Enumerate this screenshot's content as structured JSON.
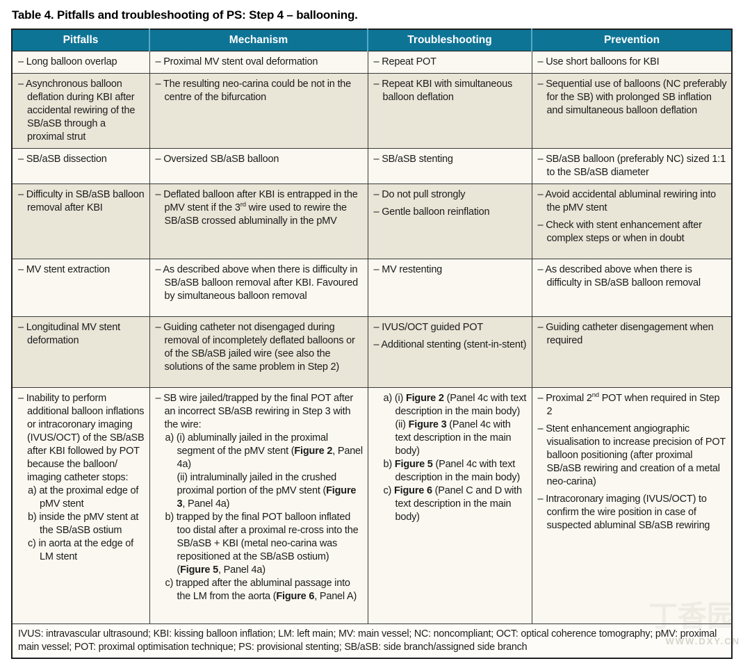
{
  "title": "Table 4. Pitfalls and troubleshooting of PS: Step 4 – ballooning.",
  "header": {
    "columns": [
      "Pitfalls",
      "Mechanism",
      "Troubleshooting",
      "Prevention"
    ]
  },
  "rows": [
    {
      "pitfalls": [
        {
          "k": "it",
          "t": "– Long balloon overlap"
        }
      ],
      "mechanism": [
        {
          "k": "it",
          "t": "– Proximal MV stent oval deformation"
        }
      ],
      "troubleshooting": [
        {
          "k": "it",
          "t": "– Repeat POT"
        }
      ],
      "prevention": [
        {
          "k": "it",
          "t": "– Use short balloons for KBI"
        }
      ]
    },
    {
      "pitfalls": [
        {
          "k": "it",
          "t": "– Asynchronous balloon deflation during KBI after accidental rewiring of the SB/aSB through a proximal strut"
        }
      ],
      "mechanism": [
        {
          "k": "it",
          "t": "– The resulting neo-carina could be not in the centre of the bifurcation"
        }
      ],
      "troubleshooting": [
        {
          "k": "it",
          "t": "– Repeat KBI with simultaneous balloon deflation"
        }
      ],
      "prevention": [
        {
          "k": "it",
          "t": "– Sequential use of balloons (NC preferably for the SB) with prolonged SB inflation and simultaneous balloon deflation"
        }
      ]
    },
    {
      "pitfalls": [
        {
          "k": "it",
          "t": "– SB/aSB dissection"
        }
      ],
      "mechanism": [
        {
          "k": "it",
          "t": "– Oversized SB/aSB balloon"
        }
      ],
      "troubleshooting": [
        {
          "k": "it",
          "t": "– SB/aSB stenting"
        }
      ],
      "prevention": [
        {
          "k": "it",
          "t": "– SB/aSB balloon (preferably NC) sized 1:1 to the SB/aSB diameter"
        }
      ]
    },
    {
      "pitfalls": [
        {
          "k": "it",
          "t": "– Difficulty in SB/aSB balloon removal after KBI"
        }
      ],
      "mechanism": [
        {
          "k": "it",
          "t": "– Deflated balloon after KBI is entrapped in the pMV stent if the 3<sup>rd</sup> wire used to rewire the SB/aSB crossed abluminally in the pMV"
        }
      ],
      "troubleshooting": [
        {
          "k": "it",
          "t": "– Do not pull strongly"
        },
        {
          "k": "it",
          "t": "– Gentle balloon reinflation"
        }
      ],
      "prevention": [
        {
          "k": "it",
          "t": "– Avoid accidental abluminal rewiring into the pMV stent"
        },
        {
          "k": "it",
          "t": "– Check with stent enhancement after complex steps or when in doubt"
        }
      ]
    },
    {
      "pitfalls": [
        {
          "k": "it",
          "t": "– MV stent extraction"
        }
      ],
      "mechanism": [
        {
          "k": "it",
          "t": "– As described above when there is difficulty in SB/aSB balloon removal after KBI. Favoured by simultaneous balloon removal"
        }
      ],
      "troubleshooting": [
        {
          "k": "it",
          "t": "– MV restenting"
        }
      ],
      "prevention": [
        {
          "k": "it",
          "t": "– As described above when there is difficulty in SB/aSB balloon removal"
        }
      ]
    },
    {
      "pitfalls": [
        {
          "k": "it",
          "t": "– Longitudinal MV stent deformation"
        }
      ],
      "mechanism": [
        {
          "k": "it",
          "t": "– Guiding catheter not disengaged during removal of incompletely deflated balloons or of the SB/aSB jailed wire (see also the solutions of the same problem in Step 2)"
        }
      ],
      "troubleshooting": [
        {
          "k": "it",
          "t": "– IVUS/OCT guided POT"
        },
        {
          "k": "it",
          "t": "– Additional stenting (stent-in-stent)"
        }
      ],
      "prevention": [
        {
          "k": "it",
          "t": "– Guiding catheter disengagement when required"
        }
      ]
    },
    {
      "pitfalls": [
        {
          "k": "it",
          "t": "– Inability to perform additional balloon inflations or intracoronary imaging (IVUS/OCT) of the SB/aSB after KBI followed by POT because the balloon/<wbr>imaging catheter stops:"
        },
        {
          "k": "sub",
          "t": "a) at the proximal edge of pMV stent"
        },
        {
          "k": "sub",
          "t": "b) inside the pMV stent at the SB/aSB ostium"
        },
        {
          "k": "sub",
          "t": "c) in aorta at the edge of LM stent"
        }
      ],
      "mechanism": [
        {
          "k": "it",
          "t": "– SB wire jailed/trapped by the final POT after an incorrect SB/aSB rewiring in Step 3 with the wire:"
        },
        {
          "k": "sub",
          "t": "a) (i) abluminally jailed in the proximal segment of the pMV stent (<b>Figure 2</b>, Panel 4a)"
        },
        {
          "k": "subc",
          "t": "(ii) intraluminally jailed in the crushed proximal portion of the pMV stent (<b>Figure 3</b>, Panel 4a)"
        },
        {
          "k": "sub",
          "t": "b) trapped by the final POT balloon inflated too distal after a proximal re-cross into the SB/aSB + KBI (metal neo-carina was repositioned at the SB/aSB ostium) (<b>Figure 5</b>, Panel 4a)"
        },
        {
          "k": "sub",
          "t": "c) trapped after the abluminal passage into the LM from the aorta (<b>Figure 6</b>, Panel A)"
        }
      ],
      "troubleshooting": [
        {
          "k": "sub",
          "t": "a) (i) <b>Figure 2</b> (Panel 4c with text description in the main body)"
        },
        {
          "k": "subc",
          "t": "(ii) <b>Figure 3</b> (Panel 4c with text description in the main body)"
        },
        {
          "k": "sub",
          "t": "b) <b>Figure 5</b> (Panel 4c with text description in the main body)"
        },
        {
          "k": "sub",
          "t": "c) <b>Figure 6</b> (Panel C and D with text description in the main body)"
        }
      ],
      "prevention": [
        {
          "k": "it",
          "t": "– Proximal 2<sup>nd</sup> POT when required in Step 2"
        },
        {
          "k": "it",
          "t": "– Stent enhancement angiographic visualisation to increase precision of POT balloon positioning (after proximal SB/aSB rewiring and creation of a metal neo-carina)"
        },
        {
          "k": "it",
          "t": "– Intracoronary imaging (IVUS/OCT) to confirm the wire position in case of suspected abluminal SB/aSB rewiring"
        }
      ]
    }
  ],
  "footnote": "IVUS: intravascular ultrasound; KBI: kissing balloon inflation; LM: left main; MV: main vessel; NC: noncompliant; OCT: optical coherence tomography; pMV: proximal main vessel; POT: proximal optimisation technique; PS: provisional stenting; SB/aSB: side branch/assigned side branch",
  "watermark": {
    "text": "WWW.DXY.CN",
    "logo": "丁香园"
  },
  "colors": {
    "header_bg": "#0e7496",
    "header_text": "#ffffff",
    "header_divider": "#54aac6",
    "row_light": "#faf8f0",
    "row_dark": "#e9e5d7",
    "grid_border": "#3a3a3a",
    "outer_border": "#1f1f1f",
    "text": "#1b1b1b",
    "footnote_bg": "#fdfcf8",
    "watermark_color": "#b9b4a6"
  }
}
